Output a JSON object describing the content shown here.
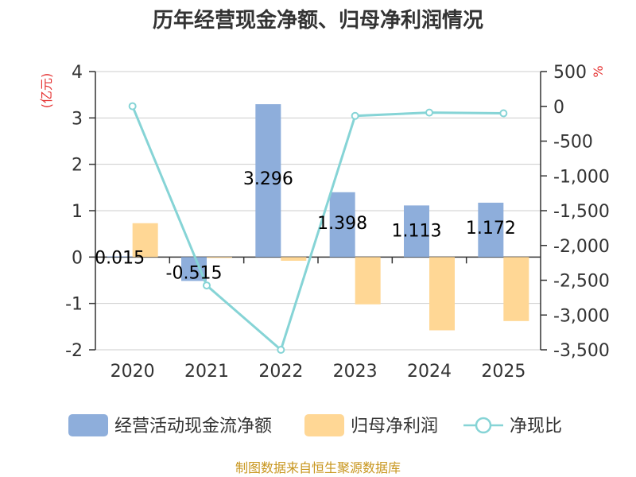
{
  "chart_data": {
    "type": "bar",
    "title": "历年经营现金净额、归母净利润情况",
    "categories": [
      "2020",
      "2021",
      "2022",
      "2023",
      "2024",
      "2025"
    ],
    "left_axis": {
      "unit": "(亿元)",
      "ylim": [
        -2,
        4
      ],
      "ticks": [
        -2,
        -1,
        0,
        1,
        2,
        3,
        4
      ],
      "tick_labels": [
        "-2",
        "-1",
        "0",
        "1",
        "2",
        "3",
        "4"
      ]
    },
    "right_axis": {
      "unit": "%",
      "ylim": [
        -3500,
        500
      ],
      "ticks": [
        -3500,
        -3000,
        -2500,
        -2000,
        -1500,
        -1000,
        -500,
        0,
        500
      ],
      "tick_labels": [
        "-3,500",
        "-3,000",
        "-2,500",
        "-2,000",
        "-1,500",
        "-1,000",
        "-500",
        "0",
        "500"
      ]
    },
    "series": [
      {
        "name": "经营活动现金流净额",
        "type": "bar",
        "axis": "left",
        "color": "#8eaedb",
        "values": [
          0.015,
          -0.515,
          3.296,
          1.398,
          1.113,
          1.172
        ],
        "labels": [
          "0.015",
          "-0.515",
          "3.296",
          "1.398",
          "1.113",
          "1.172"
        ]
      },
      {
        "name": "归母净利润",
        "type": "bar",
        "axis": "left",
        "color": "#ffd795",
        "values": [
          0.73,
          -0.02,
          -0.08,
          -1.02,
          -1.58,
          -1.38
        ]
      },
      {
        "name": "净现比",
        "type": "line",
        "axis": "right",
        "color": "#86d4d6",
        "values": [
          2,
          -2575,
          -3500,
          -137,
          -90,
          -100
        ]
      }
    ],
    "grid": true,
    "legend_position": "bottom"
  },
  "source": "制图数据来自恒生聚源数据库",
  "colors": {
    "unit_red": "#e53333",
    "source_gold": "#c8961e",
    "axis": "#333333",
    "grid": "#cccccc"
  }
}
